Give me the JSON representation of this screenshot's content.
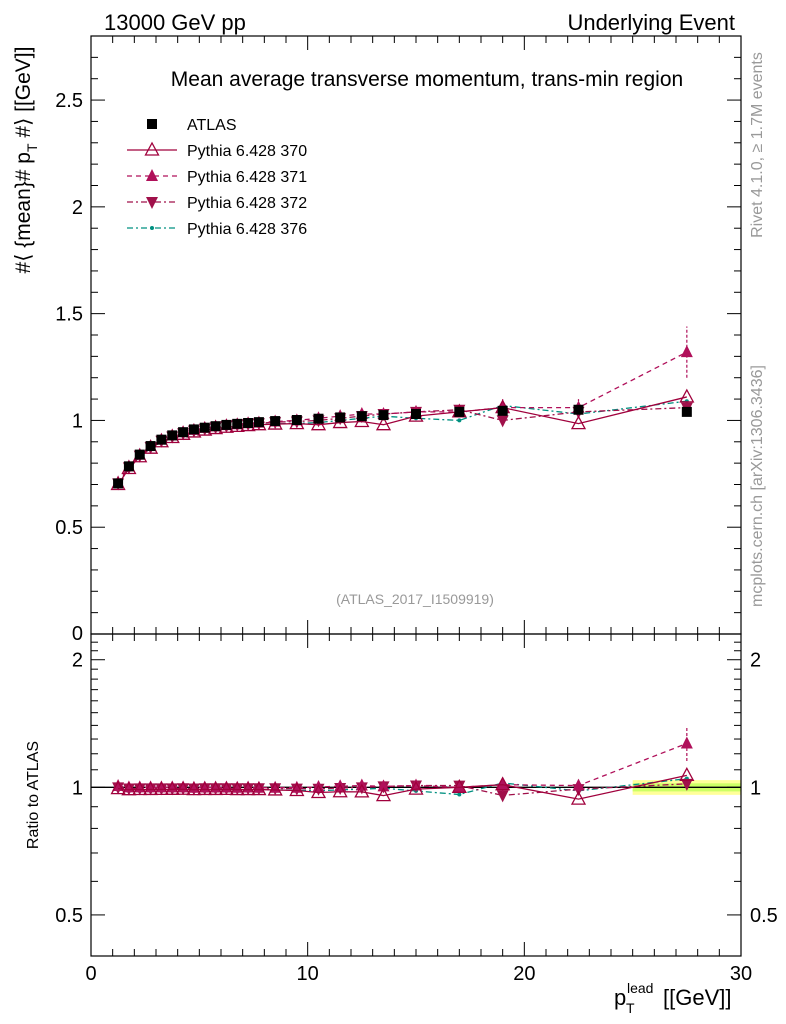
{
  "header": {
    "left": "13000 GeV pp",
    "right": "Underlying Event"
  },
  "side_labels": {
    "rivet": "Rivet 4.1.0, ≥ 1.7M events",
    "mcplots": "mcplots.cern.ch [arXiv:1306.3436]"
  },
  "analysis_id": "(ATLAS_2017_I1509919)",
  "colors": {
    "data": "#000000",
    "p370": "#a0003c",
    "p371": "#b0105a",
    "p372": "#a0104a",
    "p376": "#009080",
    "band_green": "#ccff66",
    "band_yellow": "#ffff99"
  },
  "chart_data": [
    {
      "type": "scatter",
      "title": "Mean average transverse momentum, trans-min region",
      "xlabel": "p_T^lead [[GeV]]",
      "ylabel": "#⟨ {mean}# p_T #⟩ [[GeV]]",
      "xlim": [
        0,
        30
      ],
      "ylim": [
        0,
        2.8
      ],
      "yticks": [
        0.5,
        1,
        1.5,
        2,
        2.5
      ],
      "ytick_labels": [
        "0.5",
        "1",
        "1.5",
        "2",
        "2.5"
      ],
      "x": [
        1.25,
        1.75,
        2.25,
        2.75,
        3.25,
        3.75,
        4.25,
        4.75,
        5.25,
        5.75,
        6.25,
        6.75,
        7.25,
        7.75,
        8.5,
        9.5,
        10.5,
        11.5,
        12.5,
        13.5,
        15,
        17,
        19,
        22.5,
        27.5
      ],
      "series": [
        {
          "name": "ATLAS",
          "marker": "square",
          "values": [
            0.705,
            0.785,
            0.84,
            0.88,
            0.91,
            0.93,
            0.945,
            0.958,
            0.966,
            0.973,
            0.979,
            0.984,
            0.988,
            0.992,
            0.997,
            1.002,
            1.008,
            1.014,
            1.02,
            1.025,
            1.03,
            1.04,
            1.045,
            1.05,
            1.04
          ]
        },
        {
          "name": "Pythia 6.428 370",
          "marker": "triangle-up-open",
          "line": "solid",
          "values": [
            0.7,
            0.775,
            0.83,
            0.87,
            0.9,
            0.92,
            0.935,
            0.946,
            0.955,
            0.962,
            0.968,
            0.972,
            0.976,
            0.98,
            0.983,
            0.985,
            0.98,
            0.99,
            0.995,
            0.98,
            1.02,
            1.04,
            1.06,
            0.985,
            1.11
          ]
        },
        {
          "name": "Pythia 6.428 371",
          "marker": "triangle-up-filled",
          "line": "dashed",
          "values": [
            0.71,
            0.785,
            0.84,
            0.88,
            0.91,
            0.93,
            0.945,
            0.956,
            0.965,
            0.972,
            0.978,
            0.982,
            0.987,
            0.99,
            0.995,
            1.0,
            1.01,
            1.02,
            1.03,
            1.03,
            1.04,
            1.04,
            1.06,
            1.06,
            1.32
          ],
          "errors": [
            0.01,
            0.01,
            0.01,
            0.01,
            0.01,
            0.01,
            0.01,
            0.01,
            0.01,
            0.01,
            0.01,
            0.01,
            0.01,
            0.01,
            0.01,
            0.01,
            0.01,
            0.01,
            0.01,
            0.01,
            0.015,
            0.02,
            0.04,
            0.04,
            0.12
          ]
        },
        {
          "name": "Pythia 6.428 372",
          "marker": "triangle-down-filled",
          "line": "dashdot",
          "values": [
            0.705,
            0.78,
            0.835,
            0.875,
            0.905,
            0.925,
            0.94,
            0.952,
            0.961,
            0.968,
            0.974,
            0.979,
            0.983,
            0.987,
            0.992,
            0.995,
            1.0,
            1.01,
            1.02,
            1.03,
            1.04,
            1.05,
            1.0,
            1.04,
            1.06
          ]
        },
        {
          "name": "Pythia 6.428 376",
          "marker": "dot",
          "line": "dashdot",
          "values": [
            0.7,
            0.775,
            0.83,
            0.87,
            0.9,
            0.92,
            0.935,
            0.946,
            0.955,
            0.962,
            0.968,
            0.973,
            0.977,
            0.981,
            0.984,
            0.986,
            0.99,
            1.0,
            1.01,
            1.02,
            1.01,
            1.0,
            1.07,
            1.03,
            1.09
          ]
        }
      ]
    },
    {
      "type": "line",
      "title": "",
      "xlabel": "p_T^lead [[GeV]]",
      "ylabel": "Ratio to ATLAS",
      "xlim": [
        0,
        30
      ],
      "ylim": [
        0.4,
        2.3
      ],
      "xticks": [
        0,
        10,
        20,
        30
      ],
      "xtick_labels": [
        "0",
        "10",
        "20",
        "30"
      ],
      "yticks": [
        0.5,
        1,
        2
      ],
      "ytick_labels": [
        "0.5",
        "1",
        "2"
      ],
      "reference_line": 1.0,
      "band_x_range": [
        25,
        30
      ],
      "band_halfwidth": 0.04
    }
  ]
}
